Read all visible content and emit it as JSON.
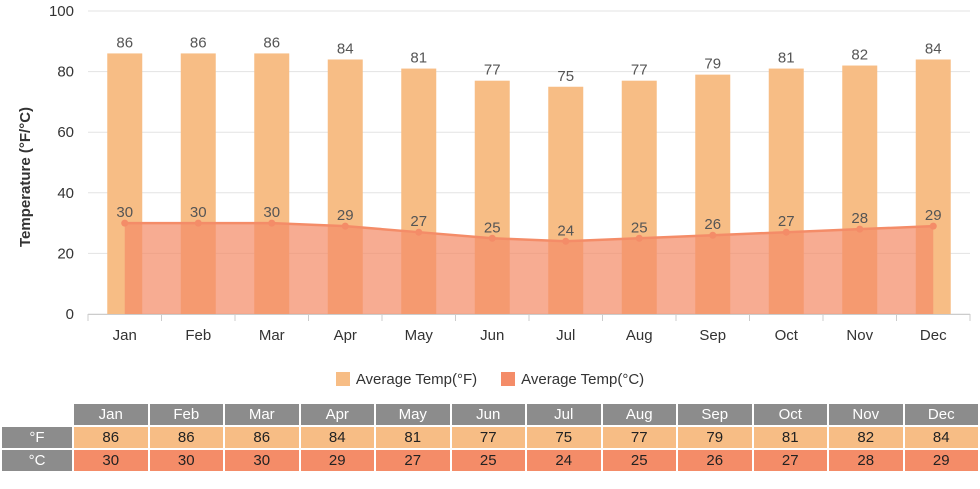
{
  "chart_data": {
    "type": "bar+area",
    "categories": [
      "Jan",
      "Feb",
      "Mar",
      "Apr",
      "May",
      "Jun",
      "Jul",
      "Aug",
      "Sep",
      "Oct",
      "Nov",
      "Dec"
    ],
    "series": [
      {
        "name": "Average Temp(°F)",
        "type": "bar",
        "color": "#f7bd85",
        "values": [
          86,
          86,
          86,
          84,
          81,
          77,
          75,
          77,
          79,
          81,
          82,
          84
        ]
      },
      {
        "name": "Average Temp(°C)",
        "type": "area",
        "color": "#f48c68",
        "values": [
          30,
          30,
          30,
          29,
          27,
          25,
          24,
          25,
          26,
          27,
          28,
          29
        ]
      }
    ],
    "ylabel": "Temperature (°F/°C)",
    "ylim": [
      0,
      100
    ],
    "yticks": [
      "0",
      "20",
      "40",
      "60",
      "80",
      "100"
    ],
    "grid": true,
    "legend": "bottom-center"
  },
  "legend": {
    "items": [
      {
        "label": "Average Temp(°F)",
        "color": "#f7bd85"
      },
      {
        "label": "Average Temp(°C)",
        "color": "#f48c68"
      }
    ]
  },
  "table": {
    "months": [
      "Jan",
      "Feb",
      "Mar",
      "Apr",
      "May",
      "Jun",
      "Jul",
      "Aug",
      "Sep",
      "Oct",
      "Nov",
      "Dec"
    ],
    "rows": [
      {
        "label": "°F",
        "values": [
          "86",
          "86",
          "86",
          "84",
          "81",
          "77",
          "75",
          "77",
          "79",
          "81",
          "82",
          "84"
        ]
      },
      {
        "label": "°C",
        "values": [
          "30",
          "30",
          "30",
          "29",
          "27",
          "25",
          "24",
          "25",
          "26",
          "27",
          "28",
          "29"
        ]
      }
    ]
  }
}
